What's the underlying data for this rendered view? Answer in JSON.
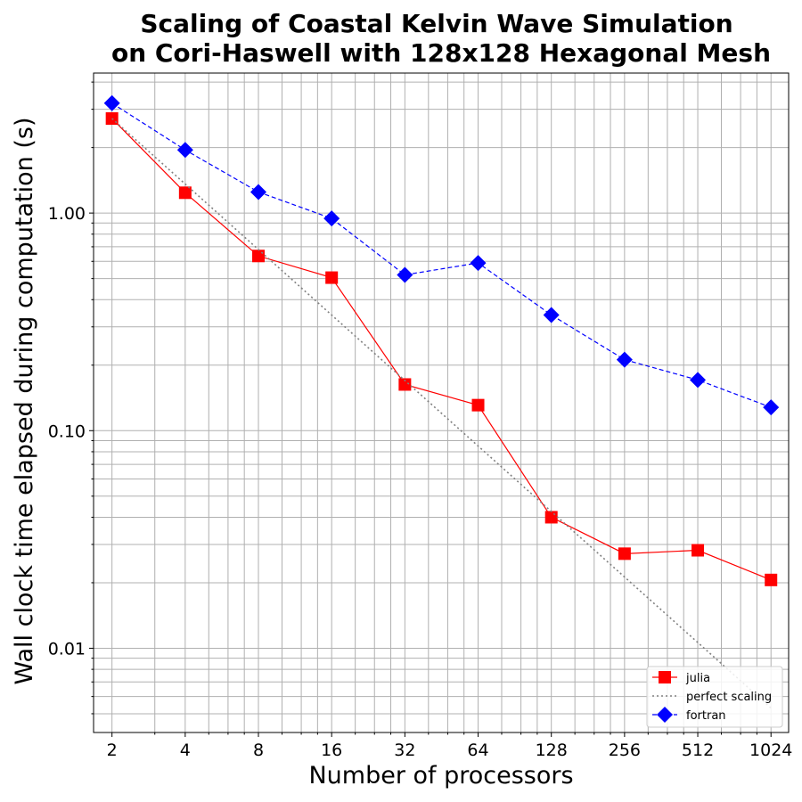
{
  "chart_data": {
    "type": "line",
    "title_lines": [
      "Scaling of Coastal Kelvin Wave Simulation",
      "on Cori-Haswell with 128x128 Hexagonal Mesh"
    ],
    "xlabel": "Number of processors",
    "ylabel": "Wall clock time elapsed during computation (s)",
    "x_scale": "log2",
    "y_scale": "log10",
    "x": [
      2,
      4,
      8,
      16,
      32,
      64,
      128,
      256,
      512,
      1024
    ],
    "x_tick_labels": [
      "2",
      "4",
      "8",
      "16",
      "32",
      "64",
      "128",
      "256",
      "512",
      "1024"
    ],
    "y_tick_labels": [
      "0.01",
      "0.10",
      "1.00"
    ],
    "xlim": [
      1.68,
      1210
    ],
    "ylim": [
      0.0041,
      4.4
    ],
    "grid": true,
    "legend_position": "lower-right",
    "series": [
      {
        "name": "julia",
        "color": "#ff0000",
        "line_style": "solid",
        "marker": "square",
        "values": [
          2.72,
          1.24,
          0.635,
          0.505,
          0.163,
          0.131,
          0.04,
          0.0272,
          0.0282,
          0.0206
        ]
      },
      {
        "name": "perfect scaling",
        "color": "#808080",
        "line_style": "dotted",
        "marker": "none",
        "values": [
          2.72,
          1.36,
          0.68,
          0.34,
          0.17,
          0.085,
          0.0425,
          0.02125,
          0.010625,
          0.0053125
        ]
      },
      {
        "name": "fortran",
        "color": "#0000ff",
        "line_style": "dashed",
        "marker": "diamond",
        "values": [
          3.2,
          1.95,
          1.25,
          0.945,
          0.52,
          0.59,
          0.34,
          0.212,
          0.171,
          0.128
        ]
      }
    ]
  }
}
